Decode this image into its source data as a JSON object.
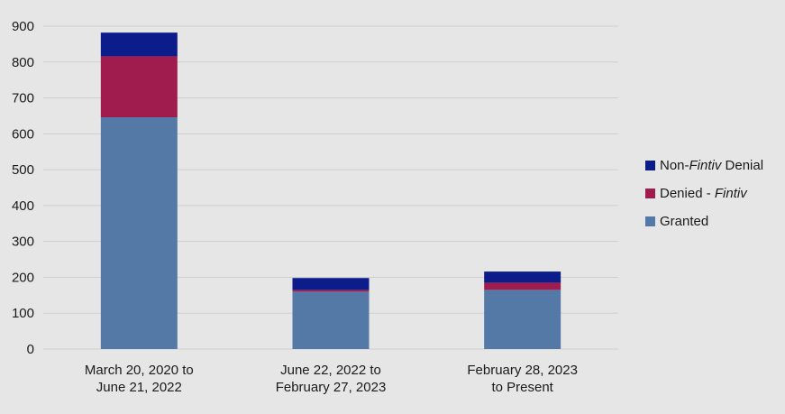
{
  "chart_data": {
    "type": "bar",
    "stacked": true,
    "categories": [
      [
        "March 20, 2020 to",
        "June 21, 2022"
      ],
      [
        "June 22, 2022 to",
        "February 27, 2023"
      ],
      [
        "February 28, 2023",
        "to Present"
      ]
    ],
    "series": [
      {
        "name": "Granted",
        "color": "#5579a6",
        "values": [
          646,
          160,
          165
        ]
      },
      {
        "name": "Denied - Fintiv",
        "color": "#a01c4e",
        "values": [
          170,
          5,
          20
        ]
      },
      {
        "name": "Non-Fintiv Denial",
        "color": "#0c1c8a",
        "values": [
          66,
          33,
          31
        ]
      }
    ],
    "ylim": [
      0,
      900
    ],
    "yticks": [
      0,
      100,
      200,
      300,
      400,
      500,
      600,
      700,
      800,
      900
    ],
    "grid": true,
    "legend_position": "right",
    "legend": [
      {
        "prefix": "Non-",
        "italic": "Fintiv",
        "suffix": " Denial",
        "color": "#0c1c8a"
      },
      {
        "prefix": "Denied - ",
        "italic": "Fintiv",
        "suffix": "",
        "color": "#a01c4e"
      },
      {
        "prefix": "Granted",
        "italic": "",
        "suffix": "",
        "color": "#5579a6"
      }
    ]
  }
}
